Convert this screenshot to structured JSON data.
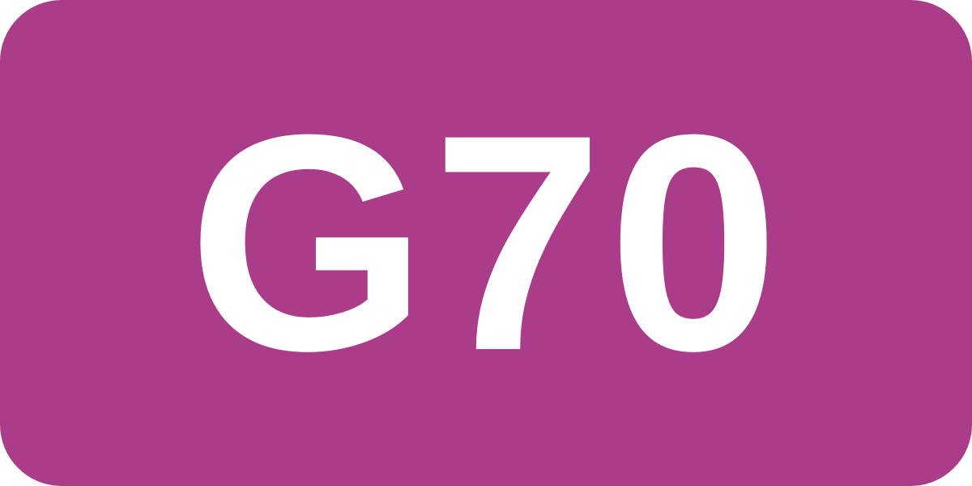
{
  "route_sign": {
    "code": "G70",
    "background_color": "#AB3C89",
    "text_color": "#FFFFFF"
  }
}
